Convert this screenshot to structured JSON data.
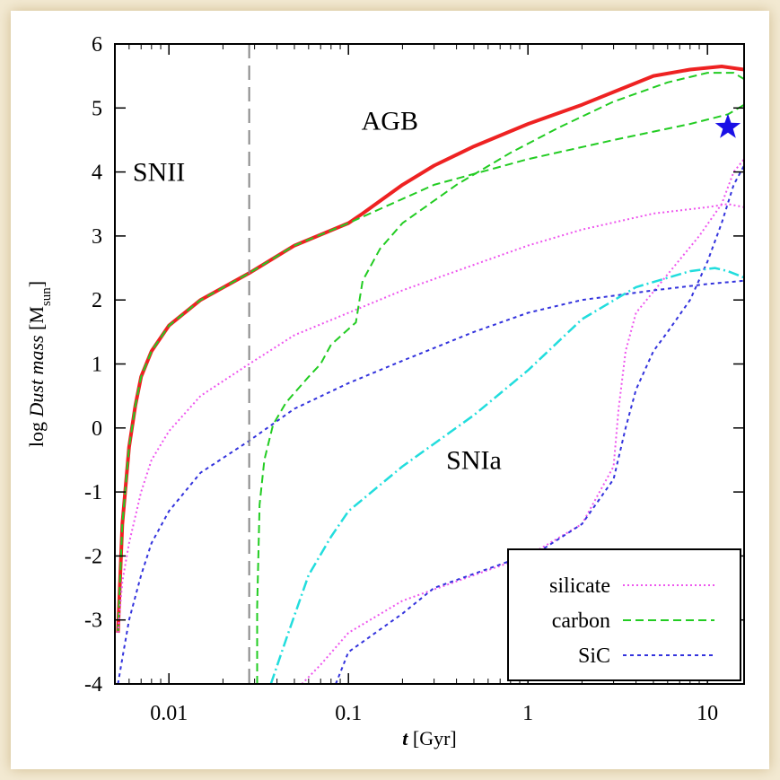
{
  "chart_data": {
    "type": "line",
    "x_scale": "log",
    "xlim": [
      0.005,
      16
    ],
    "ylim": [
      -4,
      6
    ],
    "x_ticks": [
      0.01,
      0.1,
      1,
      10
    ],
    "x_tick_labels": [
      "0.01",
      "0.1",
      "1",
      "10"
    ],
    "y_ticks": [
      -4,
      -3,
      -2,
      -1,
      0,
      1,
      2,
      3,
      4,
      5,
      6
    ],
    "y_tick_labels": [
      "-4",
      "-3",
      "-2",
      "-1",
      "0",
      "1",
      "2",
      "3",
      "4",
      "5",
      "6"
    ],
    "xlabel_italic": "t",
    "xlabel_unit": " [Gyr]",
    "ylabel_prefix": "log ",
    "ylabel_italic": "Dust mass",
    "ylabel_unit_open": " [M",
    "ylabel_unit_sub": "sun",
    "ylabel_unit_close": "]",
    "annotations": [
      {
        "text": "SNII",
        "x": 0.0088,
        "y": 4.0
      },
      {
        "text": "AGB",
        "x": 0.17,
        "y": 4.8
      },
      {
        "text": "SNIa",
        "x": 0.5,
        "y": -0.5
      }
    ],
    "vline": {
      "x": 0.028,
      "style": "dashed",
      "color": "#888888"
    },
    "marker": {
      "shape": "star",
      "x": 13.0,
      "y": 4.7,
      "color": "#1a10e6"
    },
    "legend": {
      "position": "bottom-right",
      "entries": [
        {
          "label": "silicate",
          "color": "#ee55ee",
          "dash": "2,3"
        },
        {
          "label": "carbon",
          "color": "#22cc22",
          "dash": "9,5"
        },
        {
          "label": "SiC",
          "color": "#3333dd",
          "dash": "4,4"
        }
      ]
    },
    "series": [
      {
        "group": "total",
        "color": "#ee2222",
        "width": 4,
        "dash": "",
        "points": [
          [
            0.0052,
            -3.2
          ],
          [
            0.0055,
            -1.5
          ],
          [
            0.006,
            -0.3
          ],
          [
            0.0065,
            0.35
          ],
          [
            0.007,
            0.8
          ],
          [
            0.008,
            1.2
          ],
          [
            0.01,
            1.6
          ],
          [
            0.015,
            2.0
          ],
          [
            0.028,
            2.42
          ],
          [
            0.05,
            2.85
          ],
          [
            0.1,
            3.2
          ],
          [
            0.12,
            3.35
          ],
          [
            0.2,
            3.8
          ],
          [
            0.3,
            4.1
          ],
          [
            0.5,
            4.4
          ],
          [
            1,
            4.75
          ],
          [
            2,
            5.05
          ],
          [
            3,
            5.25
          ],
          [
            5,
            5.5
          ],
          [
            8,
            5.6
          ],
          [
            12,
            5.65
          ],
          [
            16,
            5.6
          ]
        ]
      },
      {
        "group": "carbon",
        "color": "#22cc22",
        "width": 2,
        "dash": "9,5",
        "points": [
          [
            0.0052,
            -3.2
          ],
          [
            0.0055,
            -1.5
          ],
          [
            0.006,
            -0.3
          ],
          [
            0.0065,
            0.35
          ],
          [
            0.007,
            0.8
          ],
          [
            0.008,
            1.2
          ],
          [
            0.01,
            1.6
          ],
          [
            0.015,
            2.0
          ],
          [
            0.028,
            2.42
          ],
          [
            0.05,
            2.85
          ],
          [
            0.1,
            3.2
          ],
          [
            0.12,
            3.3
          ],
          [
            0.3,
            3.8
          ],
          [
            1,
            4.2
          ],
          [
            3,
            4.5
          ],
          [
            8,
            4.75
          ],
          [
            13,
            4.9
          ],
          [
            16,
            5.05
          ]
        ]
      },
      {
        "group": "carbon",
        "color": "#22cc22",
        "width": 2,
        "dash": "9,5",
        "points": [
          [
            0.031,
            -4
          ],
          [
            0.031,
            -2.8
          ],
          [
            0.032,
            -1.2
          ],
          [
            0.034,
            -0.5
          ],
          [
            0.038,
            0.05
          ],
          [
            0.045,
            0.4
          ],
          [
            0.06,
            0.8
          ],
          [
            0.07,
            1.0
          ],
          [
            0.08,
            1.3
          ],
          [
            0.11,
            1.65
          ],
          [
            0.12,
            2.3
          ],
          [
            0.15,
            2.8
          ],
          [
            0.2,
            3.2
          ],
          [
            0.4,
            3.8
          ],
          [
            0.8,
            4.3
          ],
          [
            1.5,
            4.7
          ],
          [
            3,
            5.1
          ],
          [
            6,
            5.4
          ],
          [
            10,
            5.55
          ],
          [
            14,
            5.55
          ],
          [
            16,
            5.45
          ]
        ]
      },
      {
        "group": "silicate",
        "color": "#ee55ee",
        "width": 2,
        "dash": "2,3",
        "points": [
          [
            0.0052,
            -3.2
          ],
          [
            0.0055,
            -2.4
          ],
          [
            0.006,
            -1.8
          ],
          [
            0.007,
            -1.0
          ],
          [
            0.008,
            -0.5
          ],
          [
            0.01,
            -0.05
          ],
          [
            0.015,
            0.5
          ],
          [
            0.028,
            1.0
          ],
          [
            0.05,
            1.45
          ],
          [
            0.1,
            1.8
          ],
          [
            0.2,
            2.15
          ],
          [
            0.5,
            2.55
          ],
          [
            1,
            2.85
          ],
          [
            2,
            3.1
          ],
          [
            5,
            3.35
          ],
          [
            10,
            3.45
          ],
          [
            13,
            3.5
          ],
          [
            16,
            3.45
          ]
        ]
      },
      {
        "group": "silicate",
        "color": "#ee55ee",
        "width": 2,
        "dash": "2,3",
        "points": [
          [
            0.055,
            -4
          ],
          [
            0.07,
            -3.7
          ],
          [
            0.1,
            -3.2
          ],
          [
            0.2,
            -2.7
          ],
          [
            0.5,
            -2.3
          ],
          [
            1,
            -2.0
          ],
          [
            2,
            -1.5
          ],
          [
            3,
            -0.6
          ],
          [
            3.2,
            0.3
          ],
          [
            3.5,
            1.2
          ],
          [
            4,
            1.8
          ],
          [
            6,
            2.4
          ],
          [
            9,
            3.0
          ],
          [
            12,
            3.5
          ],
          [
            14,
            4.0
          ],
          [
            16,
            4.2
          ]
        ]
      },
      {
        "group": "SiC",
        "color": "#3333dd",
        "width": 2,
        "dash": "4,4",
        "points": [
          [
            0.0052,
            -4
          ],
          [
            0.0055,
            -3.6
          ],
          [
            0.006,
            -3.0
          ],
          [
            0.007,
            -2.3
          ],
          [
            0.008,
            -1.8
          ],
          [
            0.01,
            -1.3
          ],
          [
            0.015,
            -0.7
          ],
          [
            0.028,
            -0.2
          ],
          [
            0.05,
            0.3
          ],
          [
            0.1,
            0.7
          ],
          [
            0.2,
            1.05
          ],
          [
            0.5,
            1.5
          ],
          [
            1,
            1.8
          ],
          [
            2,
            2.0
          ],
          [
            5,
            2.15
          ],
          [
            10,
            2.25
          ],
          [
            16,
            2.3
          ]
        ]
      },
      {
        "group": "SiC",
        "color": "#3333dd",
        "width": 2,
        "dash": "4,4",
        "points": [
          [
            0.085,
            -4
          ],
          [
            0.1,
            -3.5
          ],
          [
            0.2,
            -2.9
          ],
          [
            0.3,
            -2.5
          ],
          [
            0.6,
            -2.2
          ],
          [
            1.2,
            -1.9
          ],
          [
            2,
            -1.5
          ],
          [
            3,
            -0.8
          ],
          [
            3.5,
            0.0
          ],
          [
            4,
            0.6
          ],
          [
            5,
            1.2
          ],
          [
            6,
            1.5
          ],
          [
            8,
            2.0
          ],
          [
            10,
            2.6
          ],
          [
            12,
            3.2
          ],
          [
            14,
            3.8
          ],
          [
            16,
            4.1
          ]
        ]
      },
      {
        "group": "SNIa",
        "color": "#22dddd",
        "width": 2.5,
        "dash": "12,4,2,4",
        "points": [
          [
            0.037,
            -4
          ],
          [
            0.045,
            -3.3
          ],
          [
            0.06,
            -2.3
          ],
          [
            0.08,
            -1.7
          ],
          [
            0.1,
            -1.3
          ],
          [
            0.2,
            -0.6
          ],
          [
            0.5,
            0.2
          ],
          [
            1,
            0.9
          ],
          [
            2,
            1.7
          ],
          [
            4,
            2.2
          ],
          [
            8,
            2.45
          ],
          [
            11,
            2.5
          ],
          [
            13,
            2.45
          ],
          [
            16,
            2.35
          ]
        ]
      }
    ]
  }
}
